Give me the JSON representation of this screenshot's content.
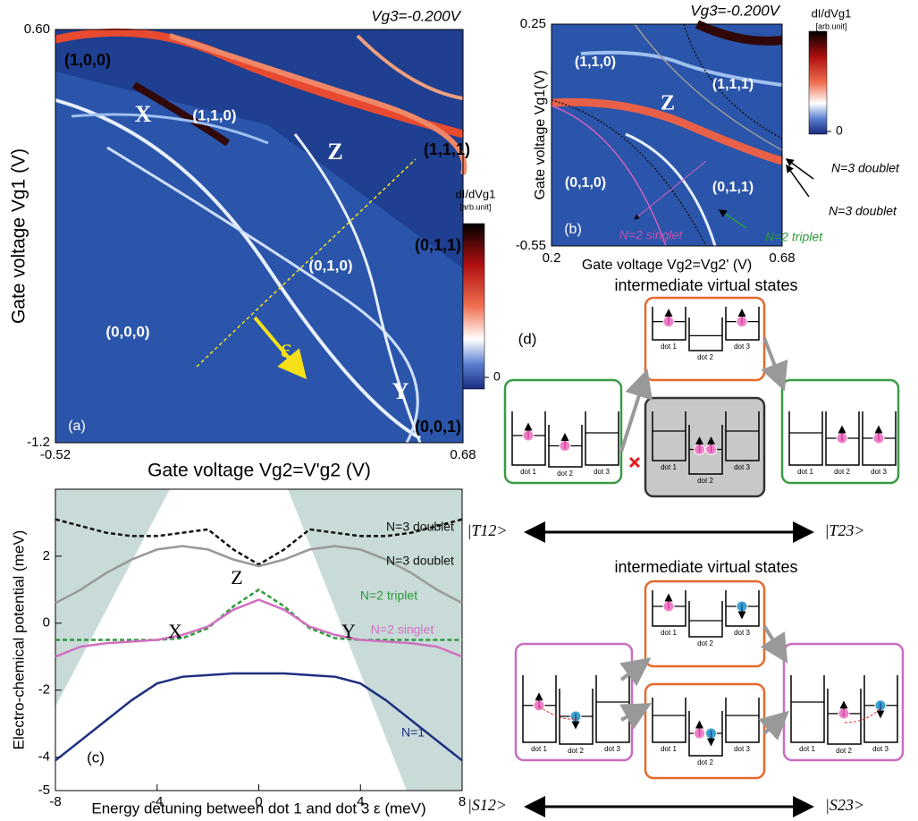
{
  "panel_a": {
    "label": "(a)",
    "title": "Vg3=-0.200V",
    "y_label": "Gate voltage Vg1 (V)",
    "x_label": "Gate voltage Vg2=V'g2 (V)",
    "xlim": [
      -0.52,
      0.68
    ],
    "xticks": [
      -0.52,
      0.68
    ],
    "ylim": [
      -1.2,
      0.6
    ],
    "yticks": [
      -1.2,
      {
        "value": 0.6,
        "label": "0.60"
      }
    ],
    "colorbar_label": "dI/dVg1",
    "colorbar_unit": "[arb.unit]",
    "colorbar_ticks": [
      0
    ],
    "states": [
      "(1,0,0)",
      "(1,1,0)",
      "(1,1,1)",
      "(0,1,1)",
      "(0,1,0)",
      "(0,0,0)",
      "(0,0,1)"
    ],
    "points": [
      "X",
      "Z",
      "Y"
    ],
    "detuning": "ε"
  },
  "panel_b": {
    "label": "(b)",
    "title": "Vg3=-0.200V",
    "y_label": "Gate voltage Vg1(V)",
    "x_label": "Gate voltage Vg2=Vg2' (V)",
    "xlim": [
      0.2,
      0.68
    ],
    "xticks": [
      0.2,
      0.68
    ],
    "ylim": [
      -0.55,
      0.25
    ],
    "yticks": [
      -0.55,
      0.25
    ],
    "colorbar_label": "dI/dVg1",
    "colorbar_unit": "[arb.unit]",
    "colorbar_ticks": [
      0
    ],
    "states": [
      "(1,1,0)",
      "(1,1,1)",
      "(0,1,0)",
      "(0,1,1)"
    ],
    "point": "Z",
    "annotations": [
      "N=3 doublet",
      "N=3 doublet",
      "N=2 singlet",
      "N=2 triplet"
    ]
  },
  "chart_data": {
    "type": "line",
    "label": "(c)",
    "x_label": "Energy detuning between dot 1 and dot 3  ε (meV)",
    "y_label": "Electro-chemical potential (meV)",
    "x": [
      -8,
      -7,
      -6,
      -5,
      -4,
      -3,
      -2,
      -1,
      0,
      1,
      2,
      3,
      4,
      5,
      6,
      7,
      8
    ],
    "xlim": [
      -8,
      8
    ],
    "xticks": [
      -8,
      -4,
      0,
      4,
      8
    ],
    "ylim": [
      -5,
      4
    ],
    "yticks": [
      -5,
      -4,
      -2,
      0,
      2
    ],
    "series": [
      {
        "name": "N=3 doublet",
        "color": "#111111",
        "style": "dashed",
        "values": [
          3.1,
          2.9,
          2.7,
          2.6,
          2.6,
          2.7,
          2.8,
          2.2,
          1.75,
          2.2,
          2.8,
          2.7,
          2.6,
          2.6,
          2.7,
          2.9,
          3.1
        ]
      },
      {
        "name": "N=3 doublet",
        "color": "#999999",
        "style": "solid",
        "values": [
          0.6,
          1.0,
          1.5,
          1.9,
          2.2,
          2.3,
          2.2,
          1.9,
          1.7,
          1.9,
          2.2,
          2.3,
          2.2,
          1.9,
          1.5,
          1.0,
          0.6
        ]
      },
      {
        "name": "N=2 triplet",
        "color": "#2e9a3a",
        "style": "dashed",
        "values": [
          -0.5,
          -0.5,
          -0.5,
          -0.5,
          -0.5,
          -0.45,
          -0.15,
          0.5,
          1.0,
          0.5,
          -0.15,
          -0.45,
          -0.5,
          -0.5,
          -0.5,
          -0.5,
          -0.5
        ]
      },
      {
        "name": "N=2 singlet",
        "color": "#d070c0",
        "style": "solid",
        "values": [
          -1.0,
          -0.7,
          -0.6,
          -0.55,
          -0.5,
          -0.35,
          -0.1,
          0.4,
          0.7,
          0.4,
          -0.1,
          -0.35,
          -0.5,
          -0.55,
          -0.6,
          -0.7,
          -1.0
        ]
      },
      {
        "name": "N=1",
        "color": "#1f2f80",
        "style": "solid",
        "values": [
          -4.1,
          -3.5,
          -2.9,
          -2.3,
          -1.8,
          -1.6,
          -1.55,
          -1.5,
          -1.5,
          -1.5,
          -1.55,
          -1.6,
          -1.8,
          -2.3,
          -2.9,
          -3.5,
          -4.1
        ]
      }
    ],
    "annotations": [
      "X",
      "Y",
      "Z"
    ]
  },
  "panel_d": {
    "label": "(d)",
    "title_triplet": "intermediate virtual states",
    "title_singlet": "intermediate virtual states",
    "dots": [
      "dot 1",
      "dot 2",
      "dot 3"
    ],
    "kets": [
      "|T12>",
      "|T23>",
      "|S12>",
      "|S23>"
    ]
  }
}
